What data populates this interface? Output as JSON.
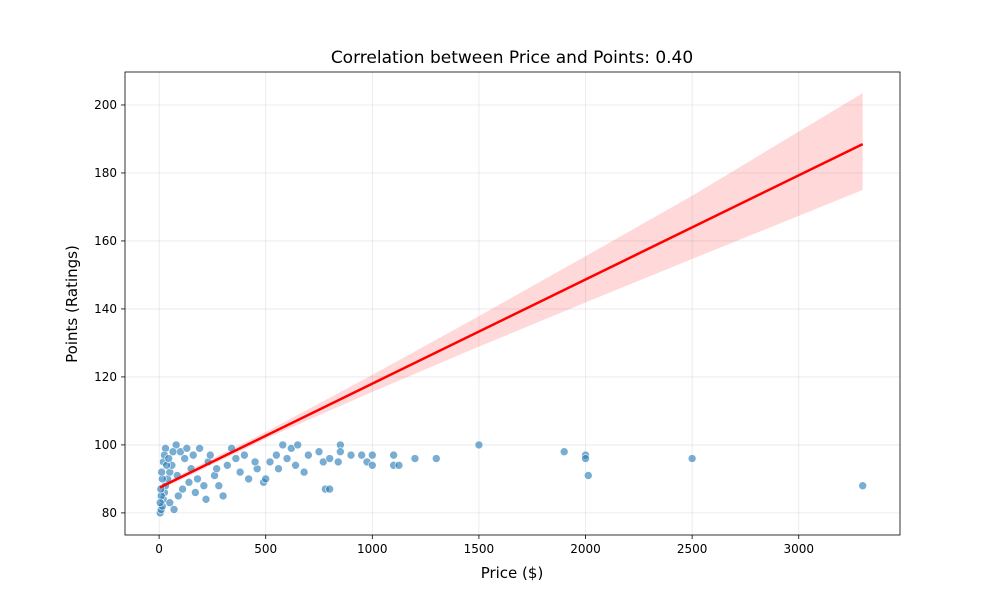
{
  "chart_data": {
    "type": "scatter",
    "title": "Correlation between Price and Points: 0.40",
    "xlabel": "Price ($)",
    "ylabel": "Points (Ratings)",
    "color": "#1f77b4",
    "grid": true,
    "xlim": [
      -160,
      3475
    ],
    "ylim": [
      73.5,
      209.7
    ],
    "xticks": [
      0,
      500,
      1000,
      1500,
      2000,
      2500,
      3000
    ],
    "yticks": [
      80,
      100,
      120,
      140,
      160,
      180,
      200
    ],
    "x": [
      5,
      10,
      15,
      20,
      25,
      30,
      40,
      50,
      60,
      80,
      100,
      120,
      150,
      180,
      220,
      10,
      15,
      20,
      30,
      50,
      70,
      90,
      110,
      140,
      160,
      190,
      230,
      260,
      280,
      320,
      360,
      380,
      420,
      460,
      520,
      560,
      640,
      680,
      5,
      8,
      12,
      25,
      35,
      45,
      65,
      85,
      130,
      170,
      210,
      240,
      270,
      300,
      340,
      400,
      450,
      490,
      500,
      550,
      580,
      600,
      620,
      650,
      700,
      750,
      770,
      780,
      800,
      800,
      840,
      850,
      850,
      900,
      950,
      975,
      1000,
      1000,
      1100,
      1100,
      1125,
      1200,
      1300,
      1500,
      1900,
      2000,
      2000,
      2013,
      2500,
      3300
    ],
    "y": [
      80,
      81,
      82,
      84,
      86,
      88,
      90,
      92,
      94,
      100,
      98,
      96,
      93,
      90,
      84,
      85,
      90,
      95,
      99,
      83,
      81,
      85,
      87,
      89,
      97,
      99,
      95,
      91,
      88,
      94,
      96,
      92,
      90,
      93,
      95,
      93,
      94,
      92,
      83,
      87,
      92,
      97,
      94,
      96,
      98,
      91,
      99,
      86,
      88,
      97,
      93,
      85,
      99,
      97,
      95,
      89,
      90,
      97,
      100,
      96,
      99,
      100,
      97,
      98,
      95,
      87,
      96,
      87,
      95,
      100,
      98,
      97,
      97,
      95,
      97,
      94,
      97,
      94,
      94,
      96,
      96,
      100,
      98,
      97,
      96,
      91,
      96,
      88
    ],
    "regression": {
      "color": "#ff0000",
      "x": [
        4,
        3300
      ],
      "y": [
        87.5,
        188.5
      ]
    },
    "ci": {
      "color": "#ff0000",
      "x": [
        4,
        500,
        1000,
        1500,
        2000,
        2500,
        3300
      ],
      "lower": [
        86.8,
        101.8,
        115.6,
        128.9,
        141.9,
        154.7,
        175
      ],
      "upper": [
        88.3,
        103.8,
        120.6,
        137.9,
        155.5,
        173.3,
        203.5
      ]
    }
  }
}
